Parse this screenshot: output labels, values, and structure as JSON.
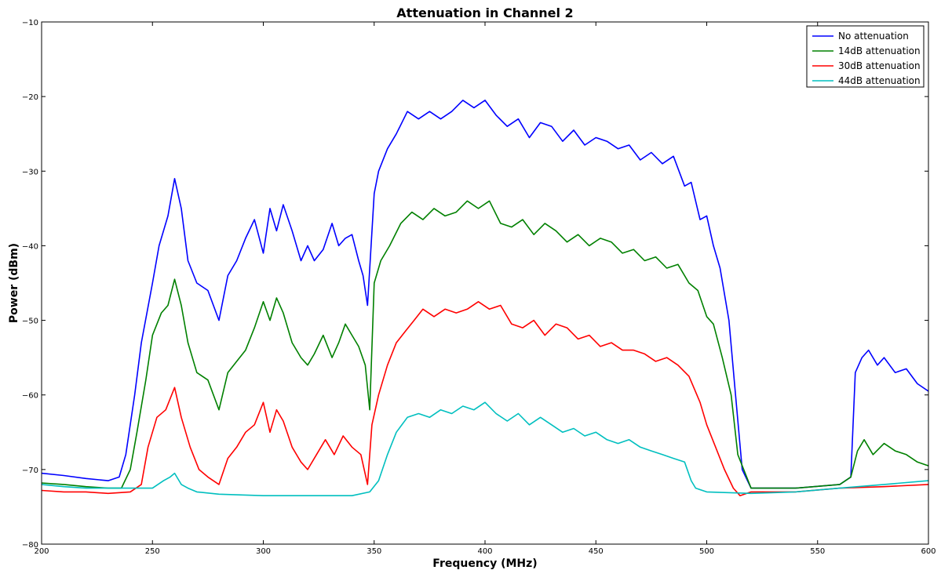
{
  "chart_data": {
    "type": "line",
    "title": "Attenuation in Channel 2",
    "xlabel": "Frequency (MHz)",
    "ylabel": "Power (dBm)",
    "xlim": [
      200,
      600
    ],
    "ylim": [
      -80,
      -10
    ],
    "xticks": [
      200,
      250,
      300,
      350,
      400,
      450,
      500,
      550,
      600
    ],
    "yticks": [
      -80,
      -70,
      -60,
      -50,
      -40,
      -30,
      -20,
      -10
    ],
    "legend": "top-right",
    "grid": false,
    "series": [
      {
        "name": "No attenuation",
        "color": "#0000ff",
        "x": [
          200,
          210,
          220,
          230,
          235,
          238,
          242,
          245,
          250,
          253,
          257,
          260,
          263,
          266,
          270,
          275,
          280,
          284,
          288,
          292,
          296,
          300,
          303,
          306,
          309,
          313,
          317,
          320,
          323,
          327,
          331,
          334,
          337,
          340,
          343,
          345,
          347,
          350,
          352,
          356,
          360,
          365,
          370,
          375,
          380,
          385,
          390,
          395,
          400,
          405,
          410,
          415,
          420,
          425,
          430,
          435,
          440,
          445,
          450,
          455,
          460,
          465,
          470,
          475,
          480,
          485,
          490,
          493,
          497,
          500,
          503,
          506,
          510,
          513,
          516,
          520,
          540,
          560,
          565,
          567,
          570,
          573,
          577,
          580,
          585,
          590,
          595,
          600
        ],
        "y": [
          -70.5,
          -70.8,
          -71.2,
          -71.5,
          -71.0,
          -68.0,
          -60.0,
          -53.0,
          -45.0,
          -40.0,
          -36.0,
          -31.0,
          -35.0,
          -42.0,
          -45.0,
          -46.0,
          -50.0,
          -44.0,
          -42.0,
          -39.0,
          -36.5,
          -41.0,
          -35.0,
          -38.0,
          -34.5,
          -38.0,
          -42.0,
          -40.0,
          -42.0,
          -40.5,
          -37.0,
          -40.0,
          -39.0,
          -38.5,
          -42.0,
          -44.0,
          -48.0,
          -33.0,
          -30.0,
          -27.0,
          -25.0,
          -22.0,
          -23.0,
          -22.0,
          -23.0,
          -22.0,
          -20.5,
          -21.5,
          -20.5,
          -22.5,
          -24.0,
          -23.0,
          -25.5,
          -23.5,
          -24.0,
          -26.0,
          -24.5,
          -26.5,
          -25.5,
          -26.0,
          -27.0,
          -26.5,
          -28.5,
          -27.5,
          -29.0,
          -28.0,
          -32.0,
          -31.5,
          -36.5,
          -36.0,
          -40.0,
          -43.0,
          -50.0,
          -60.0,
          -70.0,
          -72.5,
          -72.5,
          -72.0,
          -71.0,
          -57.0,
          -55.0,
          -54.0,
          -56.0,
          -55.0,
          -57.0,
          -56.5,
          -58.5,
          -59.5
        ]
      },
      {
        "name": "14dB attenuation",
        "color": "#008000",
        "x": [
          200,
          210,
          220,
          230,
          236,
          240,
          243,
          247,
          250,
          254,
          257,
          260,
          263,
          266,
          270,
          275,
          280,
          284,
          288,
          292,
          296,
          300,
          303,
          306,
          309,
          313,
          317,
          320,
          323,
          327,
          331,
          334,
          337,
          340,
          343,
          346,
          348,
          350,
          353,
          357,
          362,
          367,
          372,
          377,
          382,
          387,
          392,
          397,
          402,
          407,
          412,
          417,
          422,
          427,
          432,
          437,
          442,
          447,
          452,
          457,
          462,
          467,
          472,
          477,
          482,
          487,
          492,
          496,
          500,
          503,
          507,
          511,
          514,
          520,
          540,
          560,
          565,
          568,
          571,
          575,
          580,
          585,
          590,
          595,
          600
        ],
        "y": [
          -71.8,
          -72.0,
          -72.3,
          -72.5,
          -72.5,
          -70.0,
          -65.0,
          -58.0,
          -52.0,
          -49.0,
          -48.0,
          -44.5,
          -48.0,
          -53.0,
          -57.0,
          -58.0,
          -62.0,
          -57.0,
          -55.5,
          -54.0,
          -51.0,
          -47.5,
          -50.0,
          -47.0,
          -49.0,
          -53.0,
          -55.0,
          -56.0,
          -54.5,
          -52.0,
          -55.0,
          -53.0,
          -50.5,
          -52.0,
          -53.5,
          -56.0,
          -62.0,
          -45.0,
          -42.0,
          -40.0,
          -37.0,
          -35.5,
          -36.5,
          -35.0,
          -36.0,
          -35.5,
          -34.0,
          -35.0,
          -34.0,
          -37.0,
          -37.5,
          -36.5,
          -38.5,
          -37.0,
          -38.0,
          -39.5,
          -38.5,
          -40.0,
          -39.0,
          -39.5,
          -41.0,
          -40.5,
          -42.0,
          -41.5,
          -43.0,
          -42.5,
          -45.0,
          -46.0,
          -49.5,
          -50.5,
          -55.0,
          -60.0,
          -68.0,
          -72.5,
          -72.5,
          -72.0,
          -71.0,
          -67.5,
          -66.0,
          -68.0,
          -66.5,
          -67.5,
          -68.0,
          -69.0,
          -69.5
        ]
      },
      {
        "name": "30dB attenuation",
        "color": "#ff0000",
        "x": [
          200,
          210,
          220,
          230,
          240,
          245,
          248,
          252,
          256,
          260,
          263,
          267,
          271,
          275,
          280,
          284,
          288,
          292,
          296,
          300,
          303,
          306,
          309,
          313,
          317,
          320,
          324,
          328,
          332,
          336,
          340,
          344,
          347,
          349,
          352,
          356,
          360,
          364,
          368,
          372,
          377,
          382,
          387,
          392,
          397,
          402,
          407,
          412,
          417,
          422,
          427,
          432,
          437,
          442,
          447,
          452,
          457,
          462,
          467,
          472,
          477,
          482,
          487,
          492,
          497,
          500,
          504,
          508,
          512,
          515,
          520,
          540,
          560,
          580,
          600
        ],
        "y": [
          -72.8,
          -73.0,
          -73.0,
          -73.2,
          -73.0,
          -72.0,
          -67.0,
          -63.0,
          -62.0,
          -59.0,
          -63.0,
          -67.0,
          -70.0,
          -71.0,
          -72.0,
          -68.5,
          -67.0,
          -65.0,
          -64.0,
          -61.0,
          -65.0,
          -62.0,
          -63.5,
          -67.0,
          -69.0,
          -70.0,
          -68.0,
          -66.0,
          -68.0,
          -65.5,
          -67.0,
          -68.0,
          -72.0,
          -64.0,
          -60.0,
          -56.0,
          -53.0,
          -51.5,
          -50.0,
          -48.5,
          -49.5,
          -48.5,
          -49.0,
          -48.5,
          -47.5,
          -48.5,
          -48.0,
          -50.5,
          -51.0,
          -50.0,
          -52.0,
          -50.5,
          -51.0,
          -52.5,
          -52.0,
          -53.5,
          -53.0,
          -54.0,
          -54.0,
          -54.5,
          -55.5,
          -55.0,
          -56.0,
          -57.5,
          -61.0,
          -64.0,
          -67.0,
          -70.0,
          -72.5,
          -73.5,
          -73.0,
          -73.0,
          -72.5,
          -72.3,
          -72.0
        ]
      },
      {
        "name": "44dB attenuation",
        "color": "#00bfbf",
        "x": [
          200,
          210,
          220,
          230,
          240,
          250,
          255,
          258,
          260,
          263,
          266,
          270,
          280,
          300,
          320,
          340,
          348,
          352,
          356,
          360,
          365,
          370,
          375,
          380,
          385,
          390,
          395,
          400,
          405,
          410,
          415,
          420,
          425,
          430,
          435,
          440,
          445,
          450,
          455,
          460,
          465,
          470,
          475,
          480,
          485,
          490,
          493,
          495,
          500,
          520,
          540,
          560,
          580,
          600
        ],
        "y": [
          -72.0,
          -72.3,
          -72.5,
          -72.5,
          -72.5,
          -72.5,
          -71.5,
          -71.0,
          -70.5,
          -72.0,
          -72.5,
          -73.0,
          -73.3,
          -73.5,
          -73.5,
          -73.5,
          -73.0,
          -71.5,
          -68.0,
          -65.0,
          -63.0,
          -62.5,
          -63.0,
          -62.0,
          -62.5,
          -61.5,
          -62.0,
          -61.0,
          -62.5,
          -63.5,
          -62.5,
          -64.0,
          -63.0,
          -64.0,
          -65.0,
          -64.5,
          -65.5,
          -65.0,
          -66.0,
          -66.5,
          -66.0,
          -67.0,
          -67.5,
          -68.0,
          -68.5,
          -69.0,
          -71.5,
          -72.5,
          -73.0,
          -73.2,
          -73.0,
          -72.5,
          -72.0,
          -71.5
        ]
      }
    ]
  }
}
